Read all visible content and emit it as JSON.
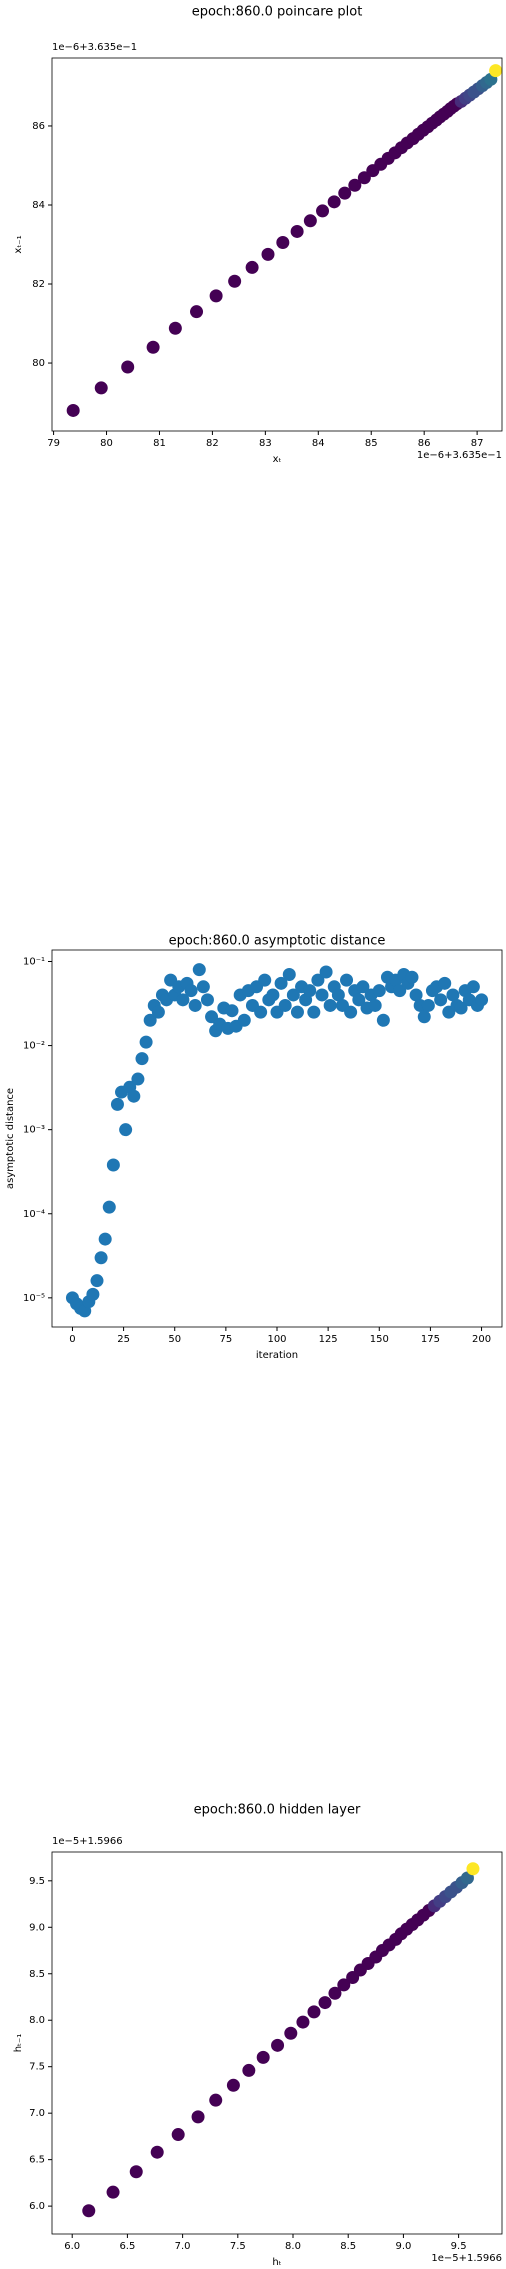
{
  "chart_data": [
    {
      "type": "scatter",
      "title": "epoch:860.0 poincare plot",
      "xlabel": "xₜ",
      "ylabel": "xₜ₋₁",
      "offset_x_label": "1e−6+3.635e−1",
      "offset_y_label": "1e−6+3.635e−1",
      "x": [
        79.37,
        79.9,
        80.4,
        80.88,
        81.3,
        81.7,
        82.07,
        82.42,
        82.75,
        83.05,
        83.33,
        83.6,
        83.85,
        84.08,
        84.3,
        84.5,
        84.69,
        84.87,
        85.03,
        85.18,
        85.32,
        85.45,
        85.57,
        85.68,
        85.79,
        85.89,
        85.98,
        86.07,
        86.15,
        86.23,
        86.3,
        86.37,
        86.44,
        86.5,
        86.56,
        86.62,
        86.7,
        86.78,
        86.86,
        86.94,
        87.02,
        87.1,
        87.18,
        87.26,
        87.35
      ],
      "values": [
        78.8,
        79.37,
        79.9,
        80.4,
        80.88,
        81.3,
        81.7,
        82.07,
        82.42,
        82.75,
        83.05,
        83.33,
        83.6,
        83.85,
        84.08,
        84.3,
        84.5,
        84.69,
        84.87,
        85.03,
        85.18,
        85.32,
        85.45,
        85.57,
        85.68,
        85.79,
        85.89,
        85.98,
        86.07,
        86.15,
        86.23,
        86.3,
        86.37,
        86.44,
        86.5,
        86.56,
        86.62,
        86.7,
        86.78,
        86.86,
        86.94,
        87.02,
        87.1,
        87.18,
        87.4
      ],
      "colors": [
        "#440154",
        "#440154",
        "#440154",
        "#440154",
        "#440154",
        "#440154",
        "#440154",
        "#440154",
        "#440154",
        "#440154",
        "#440154",
        "#440154",
        "#440154",
        "#440154",
        "#440154",
        "#440154",
        "#440154",
        "#440154",
        "#440154",
        "#440154",
        "#440154",
        "#440154",
        "#440154",
        "#440154",
        "#440154",
        "#440154",
        "#440154",
        "#440154",
        "#440154",
        "#440154",
        "#440154",
        "#440154",
        "#440154",
        "#440154",
        "#440154",
        "#440154",
        "#472c7a",
        "#433e85",
        "#3f4788",
        "#3b528b",
        "#3b528b",
        "#355f8d",
        "#31688e",
        "#2c728e",
        "#fde725"
      ],
      "xlim": [
        78.97,
        87.47
      ],
      "ylim": [
        78.28,
        87.72
      ],
      "xticks": [
        79,
        80,
        81,
        82,
        83,
        84,
        85,
        86,
        87
      ],
      "yticks": [
        80,
        82,
        84,
        86
      ],
      "log_y": false
    },
    {
      "type": "scatter",
      "title": "epoch:860.0 asymptotic distance",
      "xlabel": "iteration",
      "ylabel": "asymptotic distance",
      "x": [
        0,
        2,
        4,
        6,
        8,
        10,
        12,
        14,
        16,
        18,
        20,
        22,
        24,
        26,
        28,
        30,
        32,
        34,
        36,
        38,
        40,
        42,
        44,
        46,
        48,
        50,
        52,
        54,
        56,
        58,
        60,
        62,
        64,
        66,
        68,
        70,
        72,
        74,
        76,
        78,
        80,
        82,
        84,
        86,
        88,
        90,
        92,
        94,
        96,
        98,
        100,
        102,
        104,
        106,
        108,
        110,
        112,
        114,
        116,
        118,
        120,
        122,
        124,
        126,
        128,
        130,
        132,
        134,
        136,
        138,
        140,
        142,
        144,
        146,
        148,
        150,
        152,
        154,
        156,
        158,
        160,
        162,
        164,
        166,
        168,
        170,
        172,
        174,
        176,
        178,
        180,
        182,
        184,
        186,
        188,
        190,
        192,
        194,
        196,
        198,
        200
      ],
      "values": [
        1e-05,
        8.5e-06,
        7.5e-06,
        7e-06,
        9e-06,
        1.1e-05,
        1.6e-05,
        3e-05,
        5e-05,
        0.00012,
        0.00038,
        0.002,
        0.0028,
        0.001,
        0.0032,
        0.0025,
        0.004,
        0.007,
        0.011,
        0.02,
        0.03,
        0.025,
        0.04,
        0.035,
        0.06,
        0.04,
        0.05,
        0.035,
        0.055,
        0.045,
        0.03,
        0.08,
        0.05,
        0.035,
        0.022,
        0.015,
        0.018,
        0.028,
        0.016,
        0.026,
        0.017,
        0.04,
        0.02,
        0.045,
        0.03,
        0.05,
        0.025,
        0.06,
        0.035,
        0.04,
        0.025,
        0.055,
        0.03,
        0.07,
        0.04,
        0.025,
        0.05,
        0.035,
        0.045,
        0.025,
        0.06,
        0.04,
        0.075,
        0.03,
        0.05,
        0.04,
        0.03,
        0.06,
        0.025,
        0.045,
        0.035,
        0.05,
        0.028,
        0.04,
        0.03,
        0.045,
        0.02,
        0.065,
        0.05,
        0.06,
        0.045,
        0.07,
        0.055,
        0.065,
        0.04,
        0.03,
        0.022,
        0.03,
        0.045,
        0.05,
        0.035,
        0.055,
        0.025,
        0.04,
        0.03,
        0.028,
        0.045,
        0.035,
        0.05,
        0.03,
        0.035
      ],
      "color": "#1f77b4",
      "xlim": [
        -10,
        210
      ],
      "ylim": [
        4.5e-06,
        0.137
      ],
      "xticks": [
        0,
        25,
        50,
        75,
        100,
        125,
        150,
        175,
        200
      ],
      "yticks": [
        {
          "value": 1e-05,
          "label": "10⁻⁵"
        },
        {
          "value": 0.0001,
          "label": "10⁻⁴"
        },
        {
          "value": 0.001,
          "label": "10⁻³"
        },
        {
          "value": 0.01,
          "label": "10⁻²"
        },
        {
          "value": 0.1,
          "label": "10⁻¹"
        }
      ],
      "log_y": true
    },
    {
      "type": "scatter",
      "title": "epoch:860.0 hidden layer",
      "xlabel": "hₜ",
      "ylabel": "hₜ₋₁",
      "offset_x_label": "1e−5+1.5966",
      "offset_y_label": "1e−5+1.5966",
      "x": [
        6.15,
        6.37,
        6.58,
        6.77,
        6.96,
        7.14,
        7.3,
        7.46,
        7.6,
        7.73,
        7.86,
        7.98,
        8.09,
        8.19,
        8.29,
        8.38,
        8.46,
        8.54,
        8.61,
        8.68,
        8.75,
        8.81,
        8.87,
        8.93,
        8.98,
        9.03,
        9.08,
        9.13,
        9.18,
        9.23,
        9.28,
        9.33,
        9.38,
        9.43,
        9.48,
        9.53,
        9.58,
        9.63
      ],
      "values": [
        5.95,
        6.15,
        6.37,
        6.58,
        6.77,
        6.96,
        7.14,
        7.3,
        7.46,
        7.6,
        7.73,
        7.86,
        7.98,
        8.09,
        8.19,
        8.29,
        8.38,
        8.46,
        8.54,
        8.61,
        8.68,
        8.75,
        8.81,
        8.87,
        8.93,
        8.98,
        9.03,
        9.08,
        9.13,
        9.18,
        9.23,
        9.28,
        9.33,
        9.38,
        9.43,
        9.48,
        9.53,
        9.63
      ],
      "colors": [
        "#440154",
        "#440154",
        "#440154",
        "#440154",
        "#440154",
        "#440154",
        "#440154",
        "#440154",
        "#440154",
        "#440154",
        "#440154",
        "#440154",
        "#440154",
        "#440154",
        "#440154",
        "#440154",
        "#440154",
        "#440154",
        "#440154",
        "#440154",
        "#440154",
        "#440154",
        "#440154",
        "#440154",
        "#440154",
        "#440154",
        "#440154",
        "#440154",
        "#440154",
        "#440154",
        "#472c7a",
        "#433e85",
        "#3f4788",
        "#3b528b",
        "#3b528b",
        "#355f8d",
        "#31688e",
        "#fde725"
      ],
      "xlim": [
        5.817,
        9.893
      ],
      "ylim": [
        5.7,
        9.81
      ],
      "xticks": [
        {
          "value": 6,
          "label": "6.0"
        },
        6.5,
        {
          "value": 7,
          "label": "7.0"
        },
        7.5,
        {
          "value": 8,
          "label": "8.0"
        },
        8.5,
        {
          "value": 9,
          "label": "9.0"
        },
        9.5
      ],
      "yticks": [
        {
          "value": 6,
          "label": "6.0"
        },
        6.5,
        {
          "value": 7,
          "label": "7.0"
        },
        7.5,
        {
          "value": 8,
          "label": "8.0"
        },
        8.5,
        {
          "value": 9,
          "label": "9.0"
        },
        9.5
      ],
      "log_y": false
    }
  ]
}
